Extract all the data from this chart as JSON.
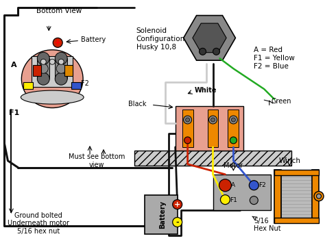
{
  "bg_color": "#ffffff",
  "colors": {
    "red": "#cc2200",
    "orange": "#dd8800",
    "yellow": "#ffee00",
    "blue": "#3355cc",
    "green": "#22aa22",
    "black": "#111111",
    "gray": "#999999",
    "light_gray": "#cccccc",
    "dark_gray": "#666666",
    "pink": "#e8a090",
    "salmon": "#e09070",
    "solenoid_gray": "#888888",
    "solenoid_dark": "#555555",
    "motor_gray": "#aaaaaa",
    "winch_orange": "#ee8800",
    "winch_drum": "#bbbbbb",
    "battery_gray": "#aaaaaa",
    "white": "#ffffff",
    "wire_gray": "#cccccc",
    "hex_gray": "#888888"
  },
  "labels": {
    "bottom_view": "Bottom View",
    "solenoid_cfg": "Solenoid\nConfiguration\nHusky 10,8",
    "black_lbl": "Black",
    "white_lbl": "White",
    "green_lbl": "Green",
    "battery_top": "Battery",
    "battery_bot": "Battery",
    "f2_left": "F2",
    "f1_left": "F1",
    "a_left": "A",
    "motor_lbl": "Motor",
    "a_motor": "A",
    "f1_motor": "F1",
    "f2_motor": "F2",
    "winch_lbl": "Winch",
    "hex_nut": "5/16\nHex Nut",
    "must_see": "Must see bottom\nview",
    "ground": "Ground bolted\nUnderneath motor\n5/16 hex nut",
    "legend": "A = Red\nF1 = Yellow\nF2 = Blue"
  }
}
